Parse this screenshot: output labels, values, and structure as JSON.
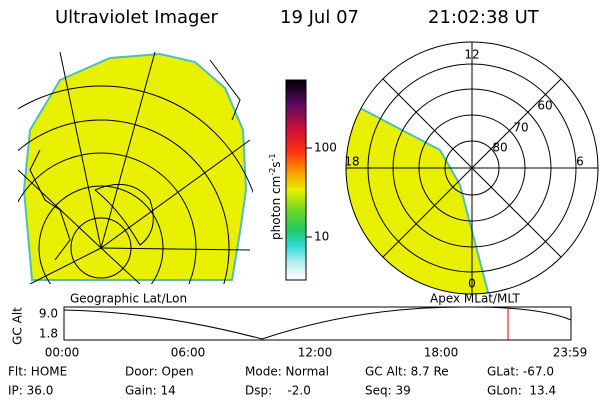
{
  "header": {
    "instrument": "Ultraviolet Imager",
    "date": "19 Jul 07",
    "time": "21:02:38 UT"
  },
  "colorbar": {
    "unit": [
      "photon cm",
      "-2",
      "s",
      "-1"
    ],
    "ticks": [
      "100",
      "10"
    ]
  },
  "polar_plot": {
    "mlt_labels": [
      "12",
      "18",
      "6",
      "0"
    ],
    "mlat_labels": [
      "60",
      "70",
      "80"
    ]
  },
  "orbit_panel": {
    "left_label": "Geographic Lat/Lon",
    "right_label": "Apex MLat/MLT",
    "y_label": "GC Alt",
    "y_ticks": [
      "9.0",
      "1.8"
    ],
    "x_ticks": [
      "00:00",
      "06:00",
      "12:00",
      "18:00",
      "23:59"
    ]
  },
  "footer": {
    "rows": [
      [
        "Flt: HOME",
        "Door: Open",
        "Mode: Normal",
        "GC Alt: 8.7 Re",
        "GLat: -67.0"
      ],
      [
        "IP: 36.0",
        "Gain: 14",
        "Dsp:    -2.0",
        "Seq: 39",
        "GLon:  13.4"
      ]
    ]
  }
}
